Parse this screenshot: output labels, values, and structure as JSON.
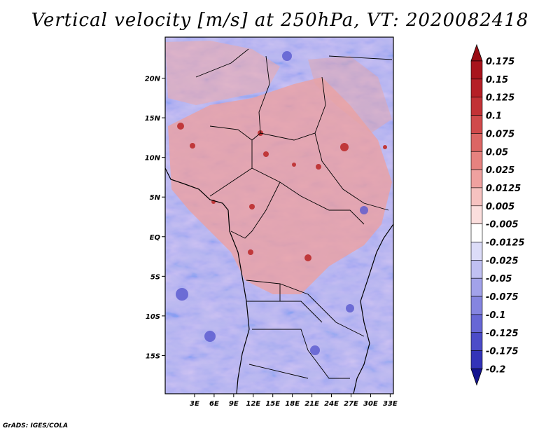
{
  "title": "Vertical velocity [m/s] at 250hPa, VT: 2020082418",
  "credit": "GrADS: IGES/COLA",
  "map": {
    "lon_range": [
      0,
      35
    ],
    "lat_range": [
      -20,
      25
    ],
    "lat_ticks": [
      {
        "value": 20,
        "label": "20N"
      },
      {
        "value": 15,
        "label": "15N"
      },
      {
        "value": 10,
        "label": "10N"
      },
      {
        "value": 5,
        "label": "5N"
      },
      {
        "value": 0,
        "label": "EQ"
      },
      {
        "value": -5,
        "label": "5S"
      },
      {
        "value": -10,
        "label": "10S"
      },
      {
        "value": -15,
        "label": "15S"
      }
    ],
    "lon_ticks": [
      {
        "value": 3,
        "label": "3E"
      },
      {
        "value": 6,
        "label": "6E"
      },
      {
        "value": 9,
        "label": "9E"
      },
      {
        "value": 12,
        "label": "12E"
      },
      {
        "value": 15,
        "label": "15E"
      },
      {
        "value": 18,
        "label": "18E"
      },
      {
        "value": 21,
        "label": "21E"
      },
      {
        "value": 24,
        "label": "24E"
      },
      {
        "value": 27,
        "label": "27E"
      },
      {
        "value": 30,
        "label": "30E"
      },
      {
        "value": 33,
        "label": "33E"
      }
    ]
  },
  "colorbar": {
    "levels": [
      {
        "label": "0.175",
        "color": "#a8141c"
      },
      {
        "label": "0.15",
        "color": "#b52027"
      },
      {
        "label": "0.125",
        "color": "#c23236"
      },
      {
        "label": "0.1",
        "color": "#d04a4b"
      },
      {
        "label": "0.075",
        "color": "#dc6664"
      },
      {
        "label": "0.05",
        "color": "#e6827f"
      },
      {
        "label": "0.025",
        "color": "#efa19f"
      },
      {
        "label": "0.0125",
        "color": "#f6c2c0"
      },
      {
        "label": "0.005",
        "color": "#fbdedd"
      },
      {
        "label": "-0.005",
        "color": "#ffffff"
      },
      {
        "label": "-0.0125",
        "color": "#dcdcf8"
      },
      {
        "label": "-0.025",
        "color": "#c0c0f2"
      },
      {
        "label": "-0.05",
        "color": "#a2a2ea"
      },
      {
        "label": "-0.075",
        "color": "#8585e0"
      },
      {
        "label": "-0.1",
        "color": "#6767d5"
      },
      {
        "label": "-0.125",
        "color": "#4c4cc8"
      },
      {
        "label": "-0.175",
        "color": "#3333b8"
      },
      {
        "label": "-0.2",
        "color": "#1e1ea4"
      }
    ],
    "top_arrow_color": "#9a0c14",
    "bottom_arrow_color": "#14148f",
    "between_colors": [
      "#ffffff"
    ]
  }
}
